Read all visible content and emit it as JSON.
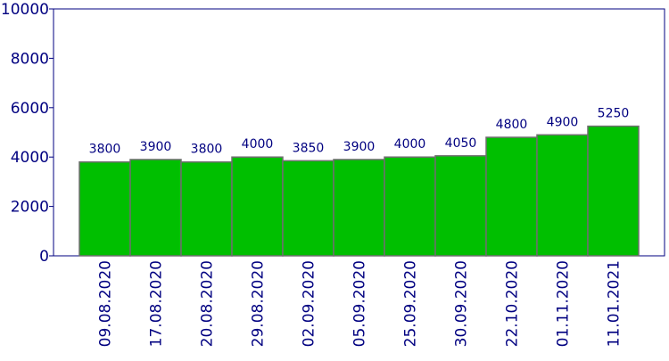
{
  "chart_data": {
    "type": "bar",
    "categories": [
      "09.08.2020",
      "17.08.2020",
      "20.08.2020",
      "29.08.2020",
      "02.09.2020",
      "05.09.2020",
      "25.09.2020",
      "30.09.2020",
      "22.10.2020",
      "01.11.2020",
      "11.01.2021"
    ],
    "values": [
      3800,
      3900,
      3800,
      4000,
      3850,
      3900,
      4000,
      4050,
      4800,
      4900,
      5250
    ],
    "data_labels": [
      "3800",
      "3900",
      "3800",
      "4000",
      "3850",
      "3900",
      "4000",
      "4050",
      "4800",
      "4900",
      "5250"
    ],
    "y_ticks": [
      "0",
      "2000",
      "4000",
      "6000",
      "8000",
      "10000"
    ],
    "ylim": [
      0,
      10000
    ],
    "title": "",
    "xlabel": "",
    "ylabel": "",
    "grid": false,
    "legend": "none",
    "colors": {
      "bar_fill": "#00bf00",
      "bar_stroke": "#6f6f6f",
      "axis": "#000080",
      "text": "#000080"
    }
  }
}
